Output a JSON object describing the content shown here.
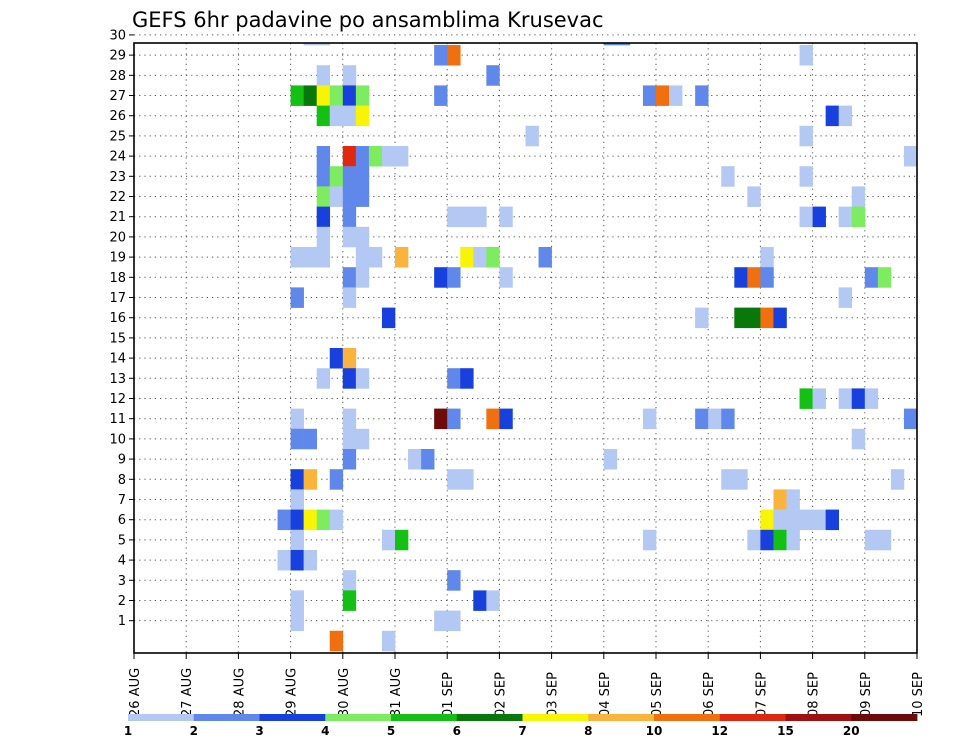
{
  "chart_data": {
    "type": "heatmap",
    "title": "GEFS 6hr padavine po ansamblima Krusevac",
    "x_tick_labels": [
      "26 AUG",
      "27 AUG",
      "28 AUG",
      "29 AUG",
      "30 AUG",
      "31 AUG",
      "01 SEP",
      "02 SEP",
      "03 SEP",
      "04 SEP",
      "05 SEP",
      "06 SEP",
      "07 SEP",
      "08 SEP",
      "09 SEP",
      "10 SEP"
    ],
    "y_tick_labels": [
      "1",
      "2",
      "3",
      "4",
      "5",
      "6",
      "7",
      "8",
      "9",
      "10",
      "11",
      "12",
      "13",
      "14",
      "15",
      "16",
      "17",
      "18",
      "19",
      "20",
      "21",
      "22",
      "23",
      "24",
      "25",
      "26",
      "27",
      "28",
      "29",
      "30"
    ],
    "x_range_days": [
      0,
      15
    ],
    "y_range": [
      0,
      30
    ],
    "grid": true,
    "time_step_hours": 6,
    "legend": {
      "position": "bottom",
      "labels": [
        "1",
        "2",
        "3",
        "4",
        "5",
        "6",
        "7",
        "8",
        "10",
        "12",
        "15",
        "20"
      ],
      "colors": [
        "#b4c8f4",
        "#6088ea",
        "#1840dc",
        "#7eec60",
        "#14c014",
        "#08780a",
        "#f8f408",
        "#fab43c",
        "#f07010",
        "#e02810",
        "#a01010",
        "#6e0a0a"
      ]
    },
    "cells": [
      {
        "m": 30,
        "t": "29 AUG 06",
        "v": 1
      },
      {
        "m": 30,
        "t": "29 AUG 12",
        "v": 1
      },
      {
        "m": 30,
        "t": "04 SEP 00",
        "v": 2
      },
      {
        "m": 30,
        "t": "04 SEP 06",
        "v": 2
      },
      {
        "m": 29,
        "t": "31 AUG 18",
        "v": 2
      },
      {
        "m": 29,
        "t": "01 SEP 00",
        "v": 10
      },
      {
        "m": 29,
        "t": "07 SEP 18",
        "v": 1
      },
      {
        "m": 28,
        "t": "29 AUG 12",
        "v": 1
      },
      {
        "m": 28,
        "t": "30 AUG 00",
        "v": 1
      },
      {
        "m": 28,
        "t": "01 SEP 18",
        "v": 2
      },
      {
        "m": 27,
        "t": "29 AUG 00",
        "v": 5
      },
      {
        "m": 27,
        "t": "29 AUG 06",
        "v": 6
      },
      {
        "m": 27,
        "t": "29 AUG 12",
        "v": 7
      },
      {
        "m": 27,
        "t": "29 AUG 18",
        "v": 4
      },
      {
        "m": 27,
        "t": "30 AUG 00",
        "v": 3
      },
      {
        "m": 27,
        "t": "30 AUG 06",
        "v": 4
      },
      {
        "m": 27,
        "t": "31 AUG 18",
        "v": 2
      },
      {
        "m": 27,
        "t": "04 SEP 18",
        "v": 2
      },
      {
        "m": 27,
        "t": "05 SEP 00",
        "v": 10
      },
      {
        "m": 27,
        "t": "05 SEP 06",
        "v": 1
      },
      {
        "m": 27,
        "t": "05 SEP 18",
        "v": 2
      },
      {
        "m": 26,
        "t": "29 AUG 12",
        "v": 5
      },
      {
        "m": 26,
        "t": "29 AUG 18",
        "v": 1
      },
      {
        "m": 26,
        "t": "30 AUG 00",
        "v": 1
      },
      {
        "m": 26,
        "t": "30 AUG 06",
        "v": 7
      },
      {
        "m": 26,
        "t": "08 SEP 06",
        "v": 3
      },
      {
        "m": 26,
        "t": "08 SEP 12",
        "v": 1
      },
      {
        "m": 25,
        "t": "02 SEP 12",
        "v": 1
      },
      {
        "m": 25,
        "t": "07 SEP 18",
        "v": 1
      },
      {
        "m": 24,
        "t": "29 AUG 12",
        "v": 2
      },
      {
        "m": 24,
        "t": "30 AUG 00",
        "v": 12
      },
      {
        "m": 24,
        "t": "30 AUG 06",
        "v": 2
      },
      {
        "m": 24,
        "t": "30 AUG 12",
        "v": 4
      },
      {
        "m": 24,
        "t": "30 AUG 18",
        "v": 1
      },
      {
        "m": 24,
        "t": "31 AUG 00",
        "v": 1
      },
      {
        "m": 24,
        "t": "09 SEP 18",
        "v": 1
      },
      {
        "m": 23,
        "t": "29 AUG 12",
        "v": 2
      },
      {
        "m": 23,
        "t": "29 AUG 18",
        "v": 4
      },
      {
        "m": 23,
        "t": "30 AUG 00",
        "v": 2
      },
      {
        "m": 23,
        "t": "30 AUG 06",
        "v": 2
      },
      {
        "m": 23,
        "t": "06 SEP 06",
        "v": 1
      },
      {
        "m": 23,
        "t": "07 SEP 18",
        "v": 1
      },
      {
        "m": 22,
        "t": "29 AUG 12",
        "v": 4
      },
      {
        "m": 22,
        "t": "29 AUG 18",
        "v": 1
      },
      {
        "m": 22,
        "t": "30 AUG 00",
        "v": 2
      },
      {
        "m": 22,
        "t": "30 AUG 06",
        "v": 2
      },
      {
        "m": 22,
        "t": "06 SEP 18",
        "v": 1
      },
      {
        "m": 22,
        "t": "08 SEP 18",
        "v": 1
      },
      {
        "m": 21,
        "t": "29 AUG 12",
        "v": 3
      },
      {
        "m": 21,
        "t": "30 AUG 00",
        "v": 2
      },
      {
        "m": 21,
        "t": "01 SEP 00",
        "v": 1
      },
      {
        "m": 21,
        "t": "01 SEP 06",
        "v": 1
      },
      {
        "m": 21,
        "t": "01 SEP 12",
        "v": 1
      },
      {
        "m": 21,
        "t": "02 SEP 00",
        "v": 1
      },
      {
        "m": 21,
        "t": "07 SEP 18",
        "v": 1
      },
      {
        "m": 21,
        "t": "08 SEP 00",
        "v": 3
      },
      {
        "m": 21,
        "t": "08 SEP 12",
        "v": 1
      },
      {
        "m": 21,
        "t": "08 SEP 18",
        "v": 4
      },
      {
        "m": 20,
        "t": "29 AUG 12",
        "v": 1
      },
      {
        "m": 20,
        "t": "30 AUG 00",
        "v": 1
      },
      {
        "m": 20,
        "t": "30 AUG 06",
        "v": 1
      },
      {
        "m": 19,
        "t": "29 AUG 00",
        "v": 1
      },
      {
        "m": 19,
        "t": "29 AUG 06",
        "v": 1
      },
      {
        "m": 19,
        "t": "29 AUG 12",
        "v": 1
      },
      {
        "m": 19,
        "t": "30 AUG 06",
        "v": 1
      },
      {
        "m": 19,
        "t": "30 AUG 12",
        "v": 1
      },
      {
        "m": 19,
        "t": "31 AUG 00",
        "v": 8
      },
      {
        "m": 19,
        "t": "01 SEP 06",
        "v": 7
      },
      {
        "m": 19,
        "t": "01 SEP 12",
        "v": 1
      },
      {
        "m": 19,
        "t": "01 SEP 18",
        "v": 4
      },
      {
        "m": 19,
        "t": "02 SEP 18",
        "v": 2
      },
      {
        "m": 19,
        "t": "07 SEP 00",
        "v": 1
      },
      {
        "m": 18,
        "t": "30 AUG 00",
        "v": 2
      },
      {
        "m": 18,
        "t": "30 AUG 06",
        "v": 1
      },
      {
        "m": 18,
        "t": "31 AUG 18",
        "v": 3
      },
      {
        "m": 18,
        "t": "01 SEP 00",
        "v": 2
      },
      {
        "m": 18,
        "t": "02 SEP 00",
        "v": 1
      },
      {
        "m": 18,
        "t": "06 SEP 12",
        "v": 3
      },
      {
        "m": 18,
        "t": "06 SEP 18",
        "v": 10
      },
      {
        "m": 18,
        "t": "07 SEP 00",
        "v": 2
      },
      {
        "m": 18,
        "t": "09 SEP 00",
        "v": 2
      },
      {
        "m": 18,
        "t": "09 SEP 06",
        "v": 4
      },
      {
        "m": 17,
        "t": "29 AUG 00",
        "v": 2
      },
      {
        "m": 17,
        "t": "30 AUG 00",
        "v": 1
      },
      {
        "m": 17,
        "t": "08 SEP 12",
        "v": 1
      },
      {
        "m": 16,
        "t": "30 AUG 18",
        "v": 3
      },
      {
        "m": 16,
        "t": "05 SEP 18",
        "v": 1
      },
      {
        "m": 16,
        "t": "06 SEP 12",
        "v": 6
      },
      {
        "m": 16,
        "t": "06 SEP 18",
        "v": 6
      },
      {
        "m": 16,
        "t": "07 SEP 00",
        "v": 10
      },
      {
        "m": 16,
        "t": "07 SEP 06",
        "v": 3
      },
      {
        "m": 14,
        "t": "29 AUG 18",
        "v": 3
      },
      {
        "m": 14,
        "t": "30 AUG 00",
        "v": 8
      },
      {
        "m": 13,
        "t": "29 AUG 12",
        "v": 1
      },
      {
        "m": 13,
        "t": "30 AUG 00",
        "v": 3
      },
      {
        "m": 13,
        "t": "30 AUG 06",
        "v": 1
      },
      {
        "m": 13,
        "t": "01 SEP 00",
        "v": 2
      },
      {
        "m": 13,
        "t": "01 SEP 06",
        "v": 3
      },
      {
        "m": 12,
        "t": "07 SEP 18",
        "v": 5
      },
      {
        "m": 12,
        "t": "08 SEP 00",
        "v": 1
      },
      {
        "m": 12,
        "t": "08 SEP 12",
        "v": 1
      },
      {
        "m": 12,
        "t": "08 SEP 18",
        "v": 3
      },
      {
        "m": 12,
        "t": "09 SEP 00",
        "v": 1
      },
      {
        "m": 11,
        "t": "29 AUG 00",
        "v": 1
      },
      {
        "m": 11,
        "t": "30 AUG 00",
        "v": 1
      },
      {
        "m": 11,
        "t": "31 AUG 18",
        "v": 20
      },
      {
        "m": 11,
        "t": "01 SEP 00",
        "v": 2
      },
      {
        "m": 11,
        "t": "01 SEP 18",
        "v": 10
      },
      {
        "m": 11,
        "t": "02 SEP 00",
        "v": 3
      },
      {
        "m": 11,
        "t": "04 SEP 18",
        "v": 1
      },
      {
        "m": 11,
        "t": "05 SEP 18",
        "v": 2
      },
      {
        "m": 11,
        "t": "06 SEP 00",
        "v": 1
      },
      {
        "m": 11,
        "t": "06 SEP 06",
        "v": 2
      },
      {
        "m": 11,
        "t": "09 SEP 18",
        "v": 2
      },
      {
        "m": 10,
        "t": "29 AUG 00",
        "v": 2
      },
      {
        "m": 10,
        "t": "29 AUG 06",
        "v": 2
      },
      {
        "m": 10,
        "t": "30 AUG 00",
        "v": 1
      },
      {
        "m": 10,
        "t": "30 AUG 06",
        "v": 1
      },
      {
        "m": 10,
        "t": "08 SEP 18",
        "v": 1
      },
      {
        "m": 9,
        "t": "30 AUG 00",
        "v": 2
      },
      {
        "m": 9,
        "t": "31 AUG 06",
        "v": 1
      },
      {
        "m": 9,
        "t": "31 AUG 12",
        "v": 2
      },
      {
        "m": 9,
        "t": "04 SEP 00",
        "v": 1
      },
      {
        "m": 8,
        "t": "29 AUG 00",
        "v": 3
      },
      {
        "m": 8,
        "t": "29 AUG 06",
        "v": 8
      },
      {
        "m": 8,
        "t": "29 AUG 18",
        "v": 2
      },
      {
        "m": 8,
        "t": "01 SEP 00",
        "v": 1
      },
      {
        "m": 8,
        "t": "01 SEP 06",
        "v": 1
      },
      {
        "m": 8,
        "t": "06 SEP 06",
        "v": 1
      },
      {
        "m": 8,
        "t": "06 SEP 12",
        "v": 1
      },
      {
        "m": 8,
        "t": "09 SEP 12",
        "v": 1
      },
      {
        "m": 7,
        "t": "29 AUG 00",
        "v": 1
      },
      {
        "m": 7,
        "t": "07 SEP 06",
        "v": 8
      },
      {
        "m": 7,
        "t": "07 SEP 12",
        "v": 1
      },
      {
        "m": 6,
        "t": "28 AUG 18",
        "v": 2
      },
      {
        "m": 6,
        "t": "29 AUG 00",
        "v": 3
      },
      {
        "m": 6,
        "t": "29 AUG 06",
        "v": 7
      },
      {
        "m": 6,
        "t": "29 AUG 12",
        "v": 4
      },
      {
        "m": 6,
        "t": "29 AUG 18",
        "v": 1
      },
      {
        "m": 6,
        "t": "07 SEP 00",
        "v": 7
      },
      {
        "m": 6,
        "t": "07 SEP 06",
        "v": 1
      },
      {
        "m": 6,
        "t": "07 SEP 12",
        "v": 1
      },
      {
        "m": 6,
        "t": "07 SEP 18",
        "v": 1
      },
      {
        "m": 6,
        "t": "08 SEP 00",
        "v": 1
      },
      {
        "m": 6,
        "t": "08 SEP 06",
        "v": 3
      },
      {
        "m": 5,
        "t": "29 AUG 00",
        "v": 1
      },
      {
        "m": 5,
        "t": "30 AUG 18",
        "v": 1
      },
      {
        "m": 5,
        "t": "31 AUG 00",
        "v": 5
      },
      {
        "m": 5,
        "t": "04 SEP 18",
        "v": 1
      },
      {
        "m": 5,
        "t": "06 SEP 18",
        "v": 1
      },
      {
        "m": 5,
        "t": "07 SEP 00",
        "v": 3
      },
      {
        "m": 5,
        "t": "07 SEP 06",
        "v": 5
      },
      {
        "m": 5,
        "t": "07 SEP 12",
        "v": 1
      },
      {
        "m": 5,
        "t": "09 SEP 00",
        "v": 1
      },
      {
        "m": 5,
        "t": "09 SEP 06",
        "v": 1
      },
      {
        "m": 4,
        "t": "28 AUG 18",
        "v": 1
      },
      {
        "m": 4,
        "t": "29 AUG 00",
        "v": 3
      },
      {
        "m": 4,
        "t": "29 AUG 06",
        "v": 1
      },
      {
        "m": 3,
        "t": "30 AUG 00",
        "v": 1
      },
      {
        "m": 3,
        "t": "01 SEP 00",
        "v": 2
      },
      {
        "m": 2,
        "t": "29 AUG 00",
        "v": 1
      },
      {
        "m": 2,
        "t": "30 AUG 00",
        "v": 5
      },
      {
        "m": 2,
        "t": "01 SEP 12",
        "v": 3
      },
      {
        "m": 2,
        "t": "01 SEP 18",
        "v": 1
      },
      {
        "m": 1,
        "t": "29 AUG 00",
        "v": 1
      },
      {
        "m": 1,
        "t": "31 AUG 18",
        "v": 1
      },
      {
        "m": 1,
        "t": "01 SEP 00",
        "v": 1
      },
      {
        "m": 0,
        "t": "29 AUG 18",
        "v": 10
      },
      {
        "m": 0,
        "t": "30 AUG 18",
        "v": 1
      }
    ]
  }
}
